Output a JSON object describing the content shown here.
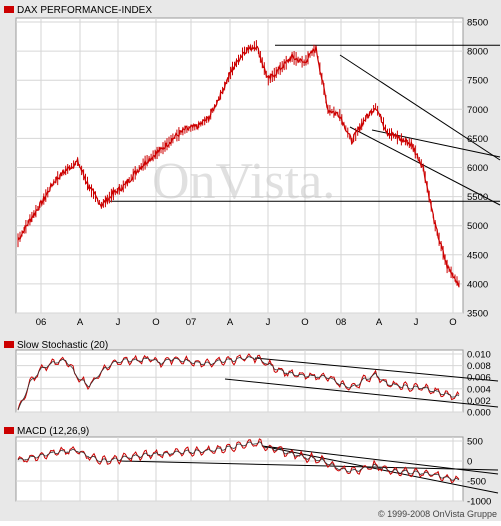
{
  "watermark": "OnVista.",
  "footer": "© 1999-2008 OnVista Gruppe",
  "colors": {
    "price": "#cc0000",
    "trend": "#000000",
    "grid": "#d6d6d6",
    "frame": "#9a9a9a",
    "panel_bg": "#ffffff",
    "page_bg": "#e8e8e8"
  },
  "chart_data": [
    {
      "type": "line",
      "title": "DAX PERFORMANCE-INDEX",
      "series_name": "DAX PERFORMANCE-INDEX",
      "x_tick_labels": [
        "06",
        "A",
        "J",
        "O",
        "07",
        "A",
        "J",
        "O",
        "08",
        "A",
        "J",
        "O"
      ],
      "y_ticks": [
        3500,
        4000,
        4500,
        5000,
        5500,
        6000,
        6500,
        7000,
        7500,
        8000,
        8500
      ],
      "ylim": [
        3500,
        8500
      ],
      "x": [
        "2005-11",
        "2005-12",
        "2006-01",
        "2006-02",
        "2006-03",
        "2006-04",
        "2006-05",
        "2006-06",
        "2006-07",
        "2006-08",
        "2006-09",
        "2006-10",
        "2006-11",
        "2006-12",
        "2007-01",
        "2007-02",
        "2007-03",
        "2007-04",
        "2007-05",
        "2007-06",
        "2007-07",
        "2007-08",
        "2007-09",
        "2007-10",
        "2007-11",
        "2007-12",
        "2008-01",
        "2008-02",
        "2008-03",
        "2008-04",
        "2008-05",
        "2008-06",
        "2008-07",
        "2008-08",
        "2008-09",
        "2008-10-early",
        "2008-10-mid",
        "2008-10-late"
      ],
      "values": [
        4750,
        5100,
        5400,
        5750,
        5950,
        6100,
        5650,
        5350,
        5550,
        5700,
        5950,
        6150,
        6300,
        6500,
        6650,
        6700,
        6850,
        7250,
        7700,
        8000,
        8100,
        7500,
        7700,
        7900,
        7800,
        8050,
        7000,
        6900,
        6450,
        6800,
        7050,
        6600,
        6500,
        6400,
        6000,
        5000,
        4300,
        4000
      ],
      "horizontal_lines": [
        8100,
        5420
      ],
      "grid": true
    },
    {
      "type": "line",
      "title": "Slow Stochastic (20)",
      "series_name": "Slow Stochastic (20)",
      "y_ticks": [
        "0.010",
        "0.008",
        "0.006",
        "0.004",
        "0.002",
        "0.000"
      ],
      "ylim": [
        0,
        0.01
      ],
      "values": [
        0.0002,
        0.005,
        0.0075,
        0.0085,
        0.009,
        0.006,
        0.0045,
        0.007,
        0.0085,
        0.009,
        0.0088,
        0.0092,
        0.0085,
        0.0092,
        0.0088,
        0.0085,
        0.0083,
        0.0088,
        0.009,
        0.0092,
        0.0094,
        0.0082,
        0.0072,
        0.0065,
        0.0062,
        0.0062,
        0.006,
        0.0048,
        0.0042,
        0.0055,
        0.0065,
        0.0048,
        0.0045,
        0.0042,
        0.0042,
        0.0035,
        0.003,
        0.0026
      ],
      "grid": true
    },
    {
      "type": "line",
      "title": "MACD (12,26,9)",
      "series_name": "MACD (12,26,9)",
      "y_ticks": [
        "500",
        "0",
        "-500",
        "-1000"
      ],
      "ylim": [
        -1000,
        500
      ],
      "values": [
        20,
        80,
        150,
        200,
        240,
        260,
        120,
        0,
        30,
        80,
        120,
        160,
        180,
        200,
        220,
        240,
        260,
        300,
        360,
        420,
        460,
        350,
        250,
        180,
        100,
        60,
        -50,
        -200,
        -260,
        -180,
        -120,
        -220,
        -260,
        -280,
        -300,
        -350,
        -420,
        -480
      ],
      "grid": true
    }
  ]
}
